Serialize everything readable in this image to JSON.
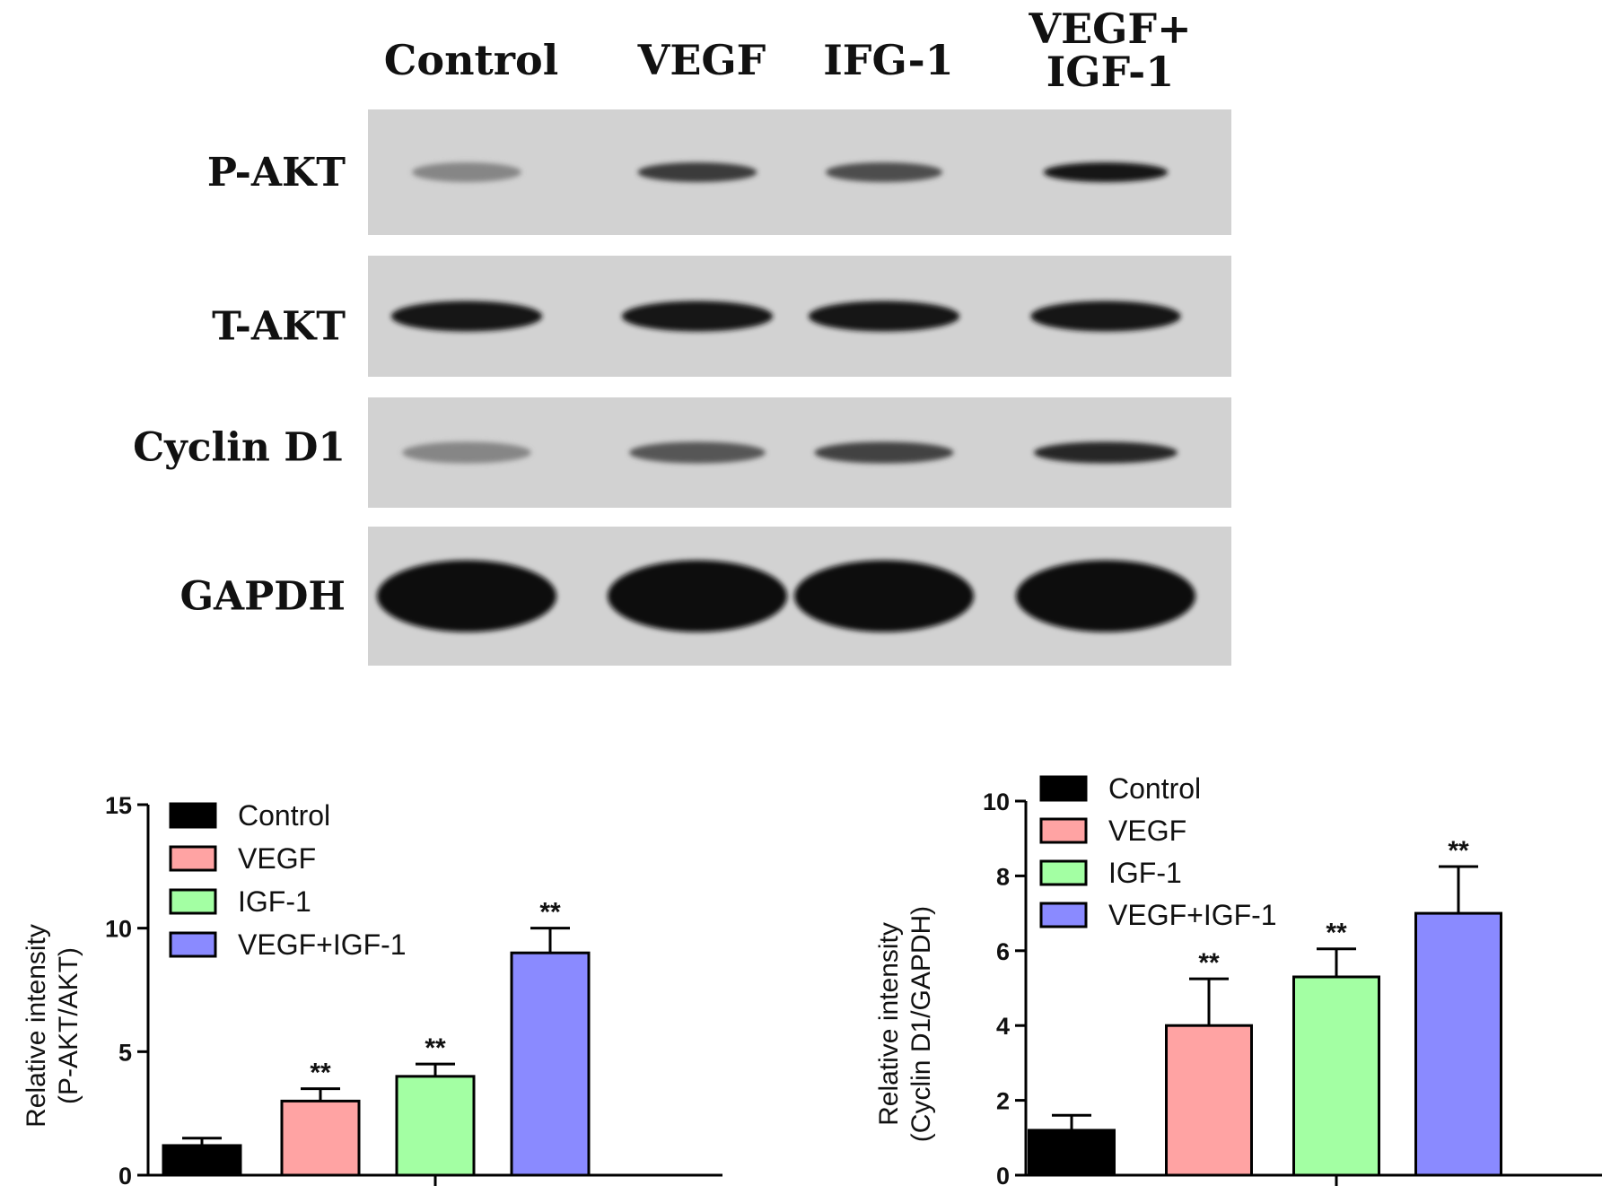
{
  "blot": {
    "lanes": [
      "Control",
      "VEGF",
      "IFG-1",
      "VEGF+ IGF-1"
    ],
    "lanes_display": [
      [
        "Control"
      ],
      [
        "VEGF"
      ],
      [
        "IFG-1"
      ],
      [
        "VEGF+",
        "IGF-1"
      ]
    ],
    "rows": [
      {
        "label": "P-AKT",
        "intensity": [
          0.35,
          0.75,
          0.65,
          0.95
        ]
      },
      {
        "label": "T-AKT",
        "intensity": [
          0.95,
          0.95,
          0.95,
          0.92
        ]
      },
      {
        "label": "Cyclin  D1",
        "intensity": [
          0.35,
          0.6,
          0.7,
          0.85
        ]
      },
      {
        "label": "GAPDH",
        "intensity": [
          1.0,
          1.0,
          1.0,
          1.0
        ]
      }
    ]
  },
  "chart_data": [
    {
      "type": "bar",
      "categories": [
        "Control",
        "VEGF",
        "IGF-1",
        "VEGF+IGF-1"
      ],
      "values": [
        1.2,
        3.0,
        4.0,
        9.0
      ],
      "errors": [
        0.3,
        0.5,
        0.5,
        1.0
      ],
      "significance": [
        "",
        "**",
        "**",
        "**"
      ],
      "ylabel": [
        "Relative intensity",
        "(P-AKT/AKT)"
      ],
      "ylim": [
        0,
        15
      ],
      "yticks": [
        0,
        5,
        10,
        15
      ],
      "legend": [
        "Control",
        "VEGF",
        "IGF-1",
        "VEGF+IGF-1"
      ],
      "legend_position": "top-left",
      "colors": [
        "#000000",
        "#ffa3a3",
        "#a3ffa3",
        "#8a8aff"
      ]
    },
    {
      "type": "bar",
      "categories": [
        "Control",
        "VEGF",
        "IGF-1",
        "VEGF+IGF-1"
      ],
      "values": [
        1.2,
        4.0,
        5.3,
        7.0
      ],
      "errors": [
        0.4,
        1.25,
        0.75,
        1.25
      ],
      "significance": [
        "",
        "**",
        "**",
        "**"
      ],
      "ylabel": [
        "Relative intensity",
        "(Cyclin D1/GAPDH)"
      ],
      "ylim": [
        0,
        10
      ],
      "yticks": [
        0,
        2,
        4,
        6,
        8,
        10
      ],
      "legend": [
        "Control",
        "VEGF",
        "IGF-1",
        "VEGF+IGF-1"
      ],
      "legend_position": "top-left",
      "colors": [
        "#000000",
        "#ffa3a3",
        "#a3ffa3",
        "#8a8aff"
      ]
    }
  ]
}
